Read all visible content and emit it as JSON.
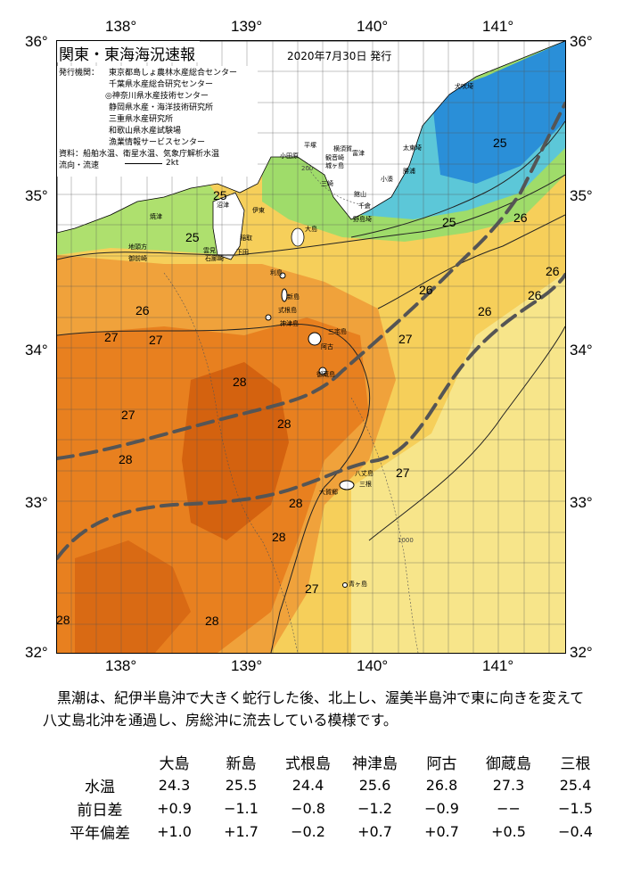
{
  "title": "関東・東海海況速報",
  "issue_date": "2020年7月30日 発行",
  "issuers_label": "発行機関：",
  "issuers": [
    "東京都島しょ農林水産総合センター",
    "千葉県水産総合研究センター",
    "◎神奈川県水産技術センター",
    "静岡県水産・海洋技術研究所",
    "三重県水産研究所",
    "和歌山県水産試験場",
    "漁業情報サービスセンター"
  ],
  "sources": "資料：船舶水温、衛星水温、気象庁解析水温",
  "current_legend_label": "流向・流速",
  "current_legend_scale": "2kt",
  "longitude_ticks": [
    "138°",
    "139°",
    "140°",
    "141°"
  ],
  "latitude_ticks": [
    "36°",
    "35°",
    "34°",
    "33°",
    "32°"
  ],
  "colors": {
    "warm_orange": "#e8801f",
    "deep_orange": "#d4620f",
    "yellow": "#f6cf5a",
    "pale_yellow": "#f7e58a",
    "green": "#7fd05a",
    "cyan": "#4fc1e8",
    "blue": "#2a8fd8",
    "land": "#ffffff",
    "kuroshio_axis": "#555555"
  },
  "place_names": {
    "inubozaki": "犬吠埼",
    "taito": "太東埼",
    "katsuura": "勝浦",
    "kominato": "小湊",
    "tateyama": "館山",
    "chikura": "千倉",
    "nojimazaki": "野島埼",
    "hirazuka": "平塚",
    "yokosuka": "横須賀",
    "odawara": "小田原",
    "kannonzaki": "観音崎",
    "futtsu": "富津",
    "jogashima": "城ヶ島",
    "misaki": "三崎",
    "numazu": "沼津",
    "ito": "伊東",
    "yaizu": "焼津",
    "omaezaki": "御前崎",
    "jizodo": "地頭方",
    "inatori": "稲取",
    "shimoda": "下田",
    "irozaki": "石廊崎",
    "kumomi": "雲見",
    "oshima": "大島",
    "toshima": "利島",
    "niijima": "新島",
    "shikinejima": "式根島",
    "kozushima": "神津島",
    "miyakejima": "三宅島",
    "ako": "阿古",
    "mikurajima": "御蔵島",
    "hachijojima": "八丈島",
    "okago": "大賀郷",
    "mitsune": "三根",
    "aogashima": "青ヶ島"
  },
  "isotherm_labels": [
    "25",
    "25",
    "25",
    "25",
    "26",
    "26",
    "26",
    "26",
    "26",
    "26",
    "27",
    "27",
    "27",
    "27",
    "27",
    "28",
    "28",
    "28",
    "28",
    "28",
    "28",
    "28"
  ],
  "depth_labels": [
    "200",
    "1000"
  ],
  "description": "黒潮は、紀伊半島沖で大きく蛇行した後、北上し、渥美半島沖で東に向きを変えて八丈島北沖を通過し、房総沖に流去している模様です。",
  "stats": {
    "stations": [
      "大島",
      "新島",
      "式根島",
      "神津島",
      "阿古",
      "御蔵島",
      "三根"
    ],
    "rows": [
      {
        "label": "水温",
        "values": [
          "24.3",
          "25.5",
          "24.4",
          "25.6",
          "26.8",
          "27.3",
          "25.4"
        ]
      },
      {
        "label": "前日差",
        "values": [
          "+0.9",
          "−1.1",
          "−0.8",
          "−1.2",
          "−0.9",
          "−−",
          "−1.5"
        ]
      },
      {
        "label": "平年偏差",
        "values": [
          "+1.0",
          "+1.7",
          "−0.2",
          "+0.7",
          "+0.7",
          "+0.5",
          "−0.4"
        ]
      }
    ]
  }
}
